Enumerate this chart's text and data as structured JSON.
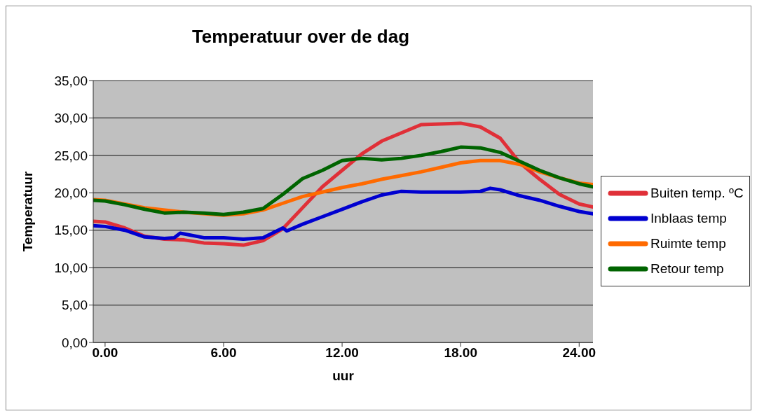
{
  "chart_data": {
    "type": "line",
    "title": "Temperatuur over de dag",
    "xlabel": "uur",
    "ylabel": "Temperatuur",
    "xlim": [
      -0.6,
      24.7
    ],
    "xticks": [
      {
        "value": 0,
        "label": "0.00"
      },
      {
        "value": 6,
        "label": "6.00"
      },
      {
        "value": 12,
        "label": "12.00"
      },
      {
        "value": 18,
        "label": "18.00"
      },
      {
        "value": 24,
        "label": "24.00"
      }
    ],
    "ylim": [
      0,
      35
    ],
    "yticks": [
      {
        "value": 0,
        "label": "0,00"
      },
      {
        "value": 5,
        "label": "5,00"
      },
      {
        "value": 10,
        "label": "10,00"
      },
      {
        "value": 15,
        "label": "15,00"
      },
      {
        "value": 20,
        "label": "20,00"
      },
      {
        "value": 25,
        "label": "25,00"
      },
      {
        "value": 30,
        "label": "30,00"
      },
      {
        "value": 35,
        "label": "35,00"
      }
    ],
    "grid": "y",
    "legend": "right",
    "marker": "none",
    "line_style": "solid",
    "series": [
      {
        "name": "Buiten temp. ºC",
        "color": "#e03038",
        "x": [
          -0.6,
          0,
          1,
          2,
          3,
          4,
          5,
          6,
          7,
          8,
          9,
          10,
          11,
          12,
          13,
          14,
          15,
          16,
          17,
          18,
          19,
          20,
          21,
          22,
          23,
          24,
          24.7
        ],
        "values": [
          16.2,
          16.1,
          15.3,
          14.2,
          13.8,
          13.7,
          13.3,
          13.2,
          13.0,
          13.6,
          15.2,
          18.0,
          20.8,
          23.0,
          25.2,
          26.9,
          28.0,
          29.1,
          29.2,
          29.3,
          28.8,
          27.3,
          24.0,
          21.8,
          19.8,
          18.5,
          18.1
        ]
      },
      {
        "name": "Inblaas temp",
        "color": "#0000d0",
        "x": [
          -0.6,
          0,
          1,
          2,
          3,
          3.5,
          3.8,
          4,
          5,
          6,
          7,
          8,
          9,
          9.2,
          10,
          11,
          12,
          13,
          14,
          15,
          16,
          17,
          18,
          19,
          19.5,
          20,
          21,
          22,
          23,
          24,
          24.7
        ],
        "values": [
          15.6,
          15.5,
          15.0,
          14.1,
          13.9,
          14.0,
          14.6,
          14.5,
          14.0,
          14.0,
          13.8,
          14.0,
          15.3,
          14.9,
          15.8,
          16.8,
          17.8,
          18.8,
          19.7,
          20.2,
          20.1,
          20.1,
          20.1,
          20.2,
          20.6,
          20.4,
          19.6,
          19.0,
          18.2,
          17.5,
          17.2
        ]
      },
      {
        "name": "Ruimte temp",
        "color": "#ff6a00",
        "x": [
          -0.6,
          0,
          2,
          4,
          6,
          7,
          8,
          9,
          10,
          11,
          12,
          13,
          14,
          15,
          16,
          17,
          18,
          19,
          20,
          21,
          22,
          23,
          24,
          24.7
        ],
        "values": [
          19.1,
          19.0,
          18.0,
          17.4,
          17.0,
          17.2,
          17.7,
          18.6,
          19.5,
          20.1,
          20.7,
          21.2,
          21.8,
          22.3,
          22.8,
          23.4,
          24.0,
          24.3,
          24.3,
          23.8,
          22.8,
          22.0,
          21.3,
          21.1
        ]
      },
      {
        "name": "Retour temp",
        "color": "#006400",
        "x": [
          -0.6,
          0,
          1,
          2,
          3,
          4,
          5,
          6,
          7,
          8,
          9,
          10,
          11,
          12,
          13,
          14,
          15,
          16,
          17,
          18,
          19,
          20,
          21,
          22,
          23,
          24,
          24.7
        ],
        "values": [
          19.0,
          18.9,
          18.4,
          17.8,
          17.3,
          17.4,
          17.3,
          17.1,
          17.4,
          17.9,
          19.8,
          21.9,
          23.0,
          24.3,
          24.6,
          24.4,
          24.6,
          25.0,
          25.5,
          26.1,
          26.0,
          25.4,
          24.2,
          23.0,
          22.0,
          21.2,
          20.8
        ]
      }
    ]
  }
}
